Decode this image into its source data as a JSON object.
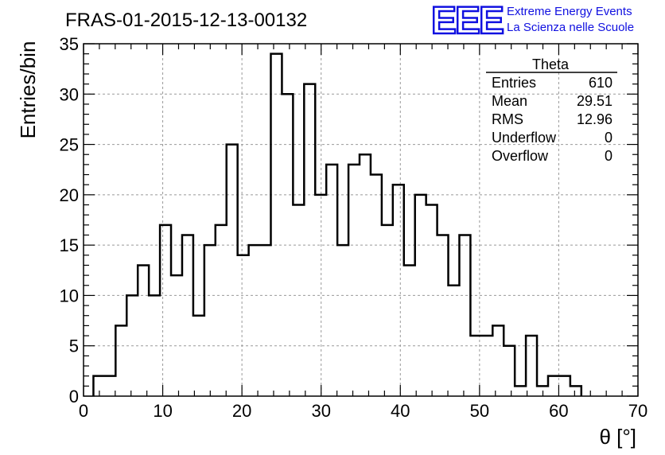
{
  "header": {
    "run_title": "FRAS-01-2015-12-13-00132",
    "logo_text": "EEE",
    "logo_line1": "Extreme Energy Events",
    "logo_line2": "La Scienza nelle Scuole",
    "brand_color": "#1010e0"
  },
  "stats_box": {
    "title": "Theta",
    "rows": [
      {
        "label": "Entries",
        "value": "610"
      },
      {
        "label": "Mean",
        "value": "29.51"
      },
      {
        "label": "RMS",
        "value": "12.96"
      },
      {
        "label": "Underflow",
        "value": "0"
      },
      {
        "label": "Overflow",
        "value": "0"
      }
    ]
  },
  "chart_data": {
    "type": "histogram",
    "title": "FRAS-01-2015-12-13-00132",
    "xlabel": "θ [°]",
    "ylabel": "Entries/bin",
    "xlim": [
      0,
      70
    ],
    "ylim": [
      0,
      35
    ],
    "grid": true,
    "x_ticks": [
      0,
      10,
      20,
      30,
      40,
      50,
      60,
      70
    ],
    "y_ticks": [
      0,
      5,
      10,
      15,
      20,
      25,
      30,
      35
    ],
    "bin_edges_start": 1.25,
    "bin_width": 1.4,
    "values": [
      2,
      2,
      7,
      10,
      13,
      10,
      17,
      12,
      16,
      8,
      15,
      17,
      25,
      14,
      15,
      15,
      34,
      30,
      19,
      31,
      20,
      23,
      15,
      23,
      24,
      22,
      17,
      21,
      13,
      20,
      19,
      16,
      11,
      16,
      6,
      6,
      7,
      5,
      1,
      6,
      1,
      2,
      2,
      1
    ]
  }
}
